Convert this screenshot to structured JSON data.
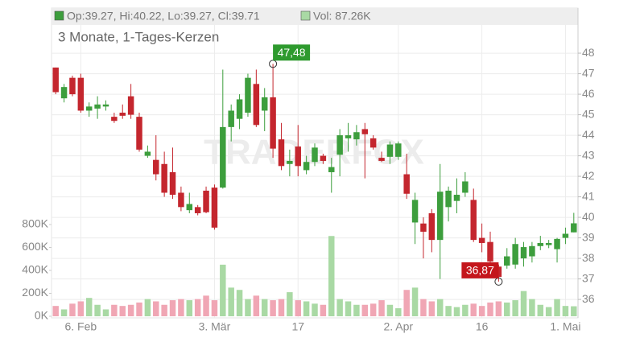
{
  "chart_data": {
    "type": "candlestick",
    "subtitle": "3 Monate, 1-Tages-Kerzen",
    "legend": [
      "Op:39.27, Hi:40.22, Lo:39.27, Cl:39.71",
      "Vol: 87.26K"
    ],
    "watermark": "TRADERFOX",
    "up_color": "#3d9e3d",
    "down_color": "#c4262e",
    "volume_up_color": "#a9d9a4",
    "volume_down_color": "#f0a6b4",
    "categories": [
      null,
      null,
      null,
      "6. Feb",
      null,
      null,
      null,
      null,
      null,
      null,
      null,
      null,
      null,
      null,
      null,
      null,
      null,
      null,
      null,
      "3. Mär",
      null,
      null,
      null,
      null,
      null,
      null,
      null,
      null,
      null,
      "17",
      null,
      null,
      null,
      null,
      null,
      null,
      null,
      null,
      null,
      null,
      null,
      "2. Apr",
      null,
      null,
      null,
      null,
      null,
      null,
      null,
      null,
      null,
      "16",
      null,
      null,
      null,
      null,
      null,
      null,
      null,
      null,
      null,
      "1. Mai",
      null
    ],
    "open": [
      47.3,
      45.8,
      46.8,
      46.8,
      45.2,
      45.3,
      45.4,
      44.9,
      45.1,
      45.9,
      44.9,
      43.0,
      42.8,
      42.6,
      42.2,
      41.2,
      40.35,
      40.5,
      41.3,
      41.45,
      41.45,
      44.4,
      44.8,
      45.1,
      46.5,
      45.2,
      45.85,
      43.8,
      42.6,
      43.45,
      42.3,
      42.7,
      43.0,
      42.2,
      43.05,
      43.85,
      43.8,
      44.3,
      43.85,
      42.9,
      42.95,
      42.95,
      42.1,
      39.75,
      39.7,
      40.2,
      38.9,
      40.5,
      40.8,
      41.2,
      40.85,
      39.0,
      38.8,
      37.6,
      37.65,
      37.7,
      38.0,
      38.1,
      38.6,
      38.65,
      38.45,
      39.0,
      39.27
    ],
    "high": [
      47.3,
      46.5,
      46.9,
      47.0,
      45.6,
      45.9,
      45.7,
      45.1,
      45.5,
      46.5,
      45.1,
      43.5,
      44.0,
      43.2,
      43.4,
      41.5,
      41.2,
      40.6,
      41.5,
      41.6,
      47.2,
      45.5,
      46.0,
      47.0,
      47.2,
      46.3,
      47.48,
      44.6,
      43.3,
      44.5,
      43.0,
      43.6,
      43.1,
      42.9,
      44.3,
      44.6,
      44.5,
      44.6,
      44.0,
      43.2,
      43.7,
      43.7,
      43.1,
      41.2,
      40.0,
      40.4,
      42.6,
      41.5,
      41.9,
      42.2,
      41.4,
      39.7,
      39.3,
      37.7,
      38.5,
      39.0,
      38.8,
      38.8,
      39.1,
      38.9,
      39.0,
      39.5,
      40.22
    ],
    "low": [
      46.0,
      45.6,
      45.9,
      45.1,
      44.9,
      44.8,
      45.2,
      44.6,
      44.8,
      44.8,
      43.2,
      42.9,
      41.8,
      41.0,
      40.9,
      40.3,
      40.2,
      40.1,
      40.2,
      39.4,
      41.4,
      43.7,
      44.3,
      44.9,
      44.4,
      44.2,
      42.9,
      42.3,
      42.0,
      42.0,
      42.1,
      42.5,
      42.6,
      41.2,
      42.0,
      43.2,
      43.5,
      41.9,
      43.3,
      42.7,
      42.6,
      42.8,
      40.9,
      38.7,
      38.0,
      38.3,
      37.0,
      39.8,
      40.2,
      41.0,
      38.8,
      38.3,
      37.7,
      36.87,
      37.5,
      37.5,
      37.6,
      37.8,
      38.4,
      38.5,
      37.8,
      38.7,
      39.27
    ],
    "close": [
      46.1,
      46.35,
      46.0,
      45.2,
      45.4,
      45.5,
      45.5,
      44.7,
      44.95,
      45.0,
      43.3,
      43.2,
      42.1,
      41.2,
      41.1,
      40.5,
      40.65,
      40.2,
      40.25,
      39.5,
      44.4,
      45.2,
      45.75,
      46.8,
      44.5,
      45.85,
      43.35,
      42.5,
      42.75,
      42.5,
      42.7,
      43.4,
      42.75,
      42.45,
      44.0,
      44.0,
      44.15,
      44.05,
      43.4,
      42.75,
      43.55,
      43.6,
      41.15,
      40.85,
      39.3,
      38.9,
      41.25,
      41.3,
      41.1,
      41.75,
      38.9,
      38.75,
      37.85,
      37.1,
      38.1,
      38.7,
      38.55,
      38.6,
      38.75,
      38.75,
      38.95,
      39.2,
      39.71
    ],
    "volume": [
      90000,
      60000,
      110000,
      130000,
      160000,
      100000,
      60000,
      100000,
      90000,
      100000,
      120000,
      150000,
      130000,
      100000,
      140000,
      150000,
      140000,
      150000,
      180000,
      140000,
      450000,
      250000,
      230000,
      150000,
      180000,
      150000,
      140000,
      150000,
      210000,
      140000,
      130000,
      110000,
      100000,
      700000,
      150000,
      130000,
      100000,
      100000,
      110000,
      140000,
      100000,
      70000,
      230000,
      250000,
      150000,
      130000,
      150000,
      90000,
      80000,
      100000,
      110000,
      90000,
      120000,
      130000,
      120000,
      140000,
      220000,
      150000,
      100000,
      80000,
      150000,
      90000,
      87260
    ],
    "ylim": [
      35.18,
      50.12
    ],
    "yticks": [
      36,
      37,
      38,
      39,
      40,
      41,
      42,
      43,
      44,
      45,
      46,
      47,
      48
    ],
    "y2lim": [
      0,
      2674000
    ],
    "y2ticks": [
      {
        "value": 0,
        "label": "0K"
      },
      {
        "value": 200000,
        "label": "200K"
      },
      {
        "value": 400000,
        "label": "400K"
      },
      {
        "value": 600000,
        "label": "600K"
      },
      {
        "value": 800000,
        "label": "800K"
      }
    ],
    "annotations": [
      {
        "label": "47,48",
        "value": 47.48,
        "color": "#2e9a2e"
      },
      {
        "label": "36,87",
        "value": 36.87,
        "color": "#c4161c"
      }
    ],
    "grid": true
  }
}
